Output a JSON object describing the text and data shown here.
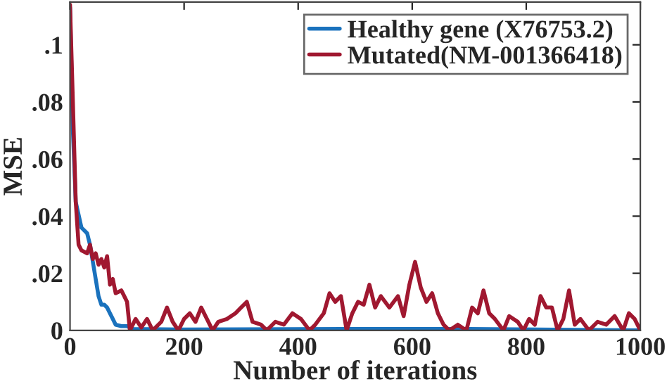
{
  "chart_data": {
    "type": "line",
    "xlabel": "Number of iterations",
    "ylabel": "MSE",
    "xlim": [
      0,
      1000
    ],
    "xticks": [
      0,
      200,
      400,
      600,
      800,
      1000
    ],
    "ylim": [
      0,
      0.115
    ],
    "yticks": [
      0,
      {
        "value": 0.02,
        "label": ".02"
      },
      {
        "value": 0.04,
        "label": ".04"
      },
      {
        "value": 0.06,
        "label": ".06"
      },
      {
        "value": 0.08,
        "label": ".08"
      },
      {
        "value": 0.1,
        "label": ".1"
      }
    ],
    "grid": false,
    "legend": "top right",
    "marker": "none",
    "line_style": "solid",
    "series": [
      {
        "name": "Healthy gene (X76753.2)",
        "color": "#1a72bd",
        "x": [
          0,
          5,
          10,
          20,
          30,
          35,
          40,
          45,
          50,
          55,
          60,
          65,
          70,
          75,
          80,
          90,
          100,
          110,
          200,
          480,
          700,
          1000
        ],
        "values": [
          0.113,
          0.07,
          0.045,
          0.036,
          0.034,
          0.03,
          0.024,
          0.018,
          0.012,
          0.009,
          0.009,
          0.008,
          0.006,
          0.004,
          0.002,
          0.0015,
          0.0015,
          0.0005,
          0.0003,
          0.0005,
          0.0005,
          0
        ]
      },
      {
        "name": "Mutated(NM-001366418)",
        "color": "#a01830",
        "x": [
          0,
          5,
          10,
          15,
          20,
          30,
          35,
          40,
          45,
          50,
          55,
          60,
          65,
          70,
          75,
          80,
          90,
          95,
          100,
          105,
          115,
          125,
          135,
          145,
          160,
          170,
          180,
          190,
          200,
          210,
          220,
          230,
          240,
          250,
          260,
          275,
          290,
          300,
          310,
          320,
          335,
          345,
          360,
          375,
          390,
          405,
          420,
          430,
          445,
          455,
          465,
          475,
          485,
          495,
          505,
          515,
          525,
          535,
          545,
          560,
          575,
          585,
          595,
          605,
          615,
          625,
          635,
          645,
          655,
          665,
          680,
          695,
          705,
          715,
          725,
          735,
          745,
          760,
          770,
          785,
          795,
          805,
          815,
          825,
          835,
          845,
          855,
          865,
          875,
          885,
          895,
          910,
          925,
          940,
          955,
          970,
          980,
          990,
          1000
        ],
        "values": [
          0.114,
          0.08,
          0.045,
          0.03,
          0.028,
          0.027,
          0.03,
          0.025,
          0.027,
          0.023,
          0.025,
          0.022,
          0.026,
          0.016,
          0.018,
          0.013,
          0.014,
          0.012,
          0.01,
          0.0,
          0.004,
          0.001,
          0.004,
          0.0,
          0.003,
          0.008,
          0.003,
          0.0,
          0.004,
          0.006,
          0.003,
          0.008,
          0.004,
          0.0,
          0.003,
          0.004,
          0.006,
          0.008,
          0.01,
          0.003,
          0.002,
          0.0,
          0.003,
          0.002,
          0.006,
          0.004,
          0.0,
          0.002,
          0.006,
          0.013,
          0.01,
          0.012,
          0.0,
          0.006,
          0.01,
          0.009,
          0.016,
          0.008,
          0.012,
          0.008,
          0.012,
          0.005,
          0.016,
          0.024,
          0.015,
          0.01,
          0.013,
          0.006,
          0.002,
          0.0,
          0.002,
          0.0,
          0.008,
          0.006,
          0.014,
          0.006,
          0.004,
          0.0,
          0.005,
          0.003,
          0.0,
          0.004,
          0.002,
          0.012,
          0.008,
          0.008,
          0.0,
          0.004,
          0.014,
          0.002,
          0.004,
          0.0,
          0.003,
          0.002,
          0.005,
          0.0,
          0.006,
          0.004,
          0.0
        ]
      }
    ]
  }
}
